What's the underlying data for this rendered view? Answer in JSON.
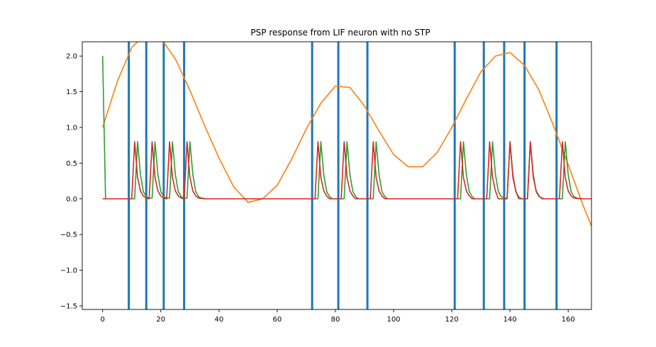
{
  "chart_data": {
    "type": "line",
    "title": "PSP response from LIF neuron with no STP",
    "xlabel": "",
    "ylabel": "",
    "xlim": [
      -7,
      168
    ],
    "ylim": [
      -1.55,
      2.2
    ],
    "xticks": [
      0,
      20,
      40,
      60,
      80,
      100,
      120,
      140,
      160
    ],
    "yticks": [
      -1.5,
      -1.0,
      -0.5,
      0.0,
      0.5,
      1.0,
      1.5,
      2.0
    ],
    "xtick_labels": [
      "0",
      "20",
      "40",
      "60",
      "80",
      "100",
      "120",
      "140",
      "160"
    ],
    "ytick_labels": [
      "−1.5",
      "−1.0",
      "−0.5",
      "0.0",
      "0.5",
      "1.0",
      "1.5",
      "2.0"
    ],
    "grid": false,
    "spike_times": [
      9,
      15,
      21,
      28,
      72,
      81,
      91,
      121,
      131,
      138,
      145,
      156
    ],
    "series": [
      {
        "color": "#ff7f0e",
        "x": [
          0,
          5,
          10,
          15,
          20,
          25,
          30,
          35,
          40,
          45,
          50,
          55,
          60,
          65,
          70,
          75,
          80,
          85,
          90,
          95,
          100,
          105,
          110,
          115,
          120,
          125,
          130,
          135,
          140,
          145,
          150,
          155,
          160,
          165,
          168
        ],
        "y": [
          1.0,
          1.64,
          2.12,
          2.32,
          2.25,
          1.96,
          1.52,
          1.03,
          0.57,
          0.17,
          -0.05,
          0.0,
          0.19,
          0.56,
          0.98,
          1.34,
          1.58,
          1.56,
          1.3,
          0.95,
          0.62,
          0.45,
          0.45,
          0.65,
          1.0,
          1.4,
          1.78,
          2.0,
          2.05,
          1.87,
          1.52,
          1.02,
          0.48,
          -0.08,
          -0.38
        ]
      },
      {
        "color": "#2ca02c",
        "x": [
          0,
          1,
          2,
          10,
          11,
          12,
          13,
          14,
          15,
          16,
          17,
          18,
          19,
          20,
          21,
          22,
          23,
          24,
          25,
          26,
          27,
          28,
          29,
          30,
          31,
          32,
          33,
          34,
          35,
          36,
          37,
          73,
          74,
          75,
          76,
          77,
          78,
          79,
          82,
          83,
          84,
          85,
          86,
          87,
          88,
          92,
          93,
          94,
          95,
          96,
          97,
          98,
          122,
          123,
          124,
          125,
          126,
          127,
          128,
          132,
          133,
          134,
          135,
          136,
          137,
          139,
          140,
          141,
          142,
          143,
          144,
          146,
          147,
          148,
          149,
          150,
          151,
          152,
          157,
          158,
          159,
          160,
          161,
          162,
          163,
          164,
          165,
          168
        ],
        "y": [
          2.0,
          0.0,
          0.0,
          0.0,
          0.0,
          0.8,
          0.34,
          0.1,
          0.03,
          0.01,
          0.01,
          0.8,
          0.34,
          0.1,
          0.03,
          0.01,
          0.01,
          0.8,
          0.34,
          0.1,
          0.03,
          0.01,
          0.01,
          0.8,
          0.34,
          0.1,
          0.03,
          0.01,
          0.005,
          0.0,
          0.0,
          0.0,
          0.0,
          0.8,
          0.34,
          0.1,
          0.03,
          0.0,
          0.0,
          0.0,
          0.8,
          0.34,
          0.1,
          0.03,
          0.0,
          0.0,
          0.0,
          0.8,
          0.34,
          0.1,
          0.03,
          0.0,
          0.0,
          0.0,
          0.8,
          0.34,
          0.1,
          0.03,
          0.0,
          0.0,
          0.0,
          0.8,
          0.34,
          0.1,
          0.03,
          0.0,
          0.8,
          0.34,
          0.1,
          0.03,
          0.0,
          0.0,
          0.8,
          0.34,
          0.1,
          0.03,
          0.01,
          0.0,
          0.0,
          0.0,
          0.8,
          0.34,
          0.1,
          0.03,
          0.01,
          0.005,
          0.0,
          0.0
        ]
      },
      {
        "color": "#d62728",
        "x": [
          0,
          10,
          11,
          12,
          13,
          14,
          15,
          16,
          17,
          18,
          19,
          20,
          21,
          22,
          23,
          24,
          25,
          26,
          27,
          28,
          29,
          30,
          31,
          32,
          33,
          34,
          35,
          36,
          72,
          73,
          74,
          75,
          76,
          77,
          78,
          81,
          82,
          83,
          84,
          85,
          86,
          87,
          91,
          92,
          93,
          94,
          95,
          96,
          97,
          121,
          122,
          123,
          124,
          125,
          126,
          127,
          131,
          132,
          133,
          134,
          135,
          136,
          138,
          139,
          140,
          141,
          142,
          143,
          145,
          146,
          147,
          148,
          149,
          150,
          151,
          156,
          157,
          158,
          159,
          160,
          161,
          162,
          163,
          164,
          168
        ],
        "y": [
          0.0,
          0.0,
          0.8,
          0.3,
          0.11,
          0.04,
          0.01,
          0.0,
          0.8,
          0.3,
          0.11,
          0.04,
          0.01,
          0.0,
          0.8,
          0.3,
          0.11,
          0.04,
          0.01,
          0.0,
          0.8,
          0.3,
          0.11,
          0.04,
          0.01,
          0.005,
          0.0,
          0.0,
          0.0,
          0.0,
          0.8,
          0.3,
          0.11,
          0.04,
          0.0,
          0.0,
          0.0,
          0.8,
          0.3,
          0.11,
          0.04,
          0.0,
          0.0,
          0.0,
          0.8,
          0.3,
          0.11,
          0.04,
          0.0,
          0.0,
          0.0,
          0.8,
          0.3,
          0.11,
          0.04,
          0.0,
          0.0,
          0.0,
          0.8,
          0.3,
          0.11,
          0.0,
          0.0,
          0.0,
          0.8,
          0.3,
          0.11,
          0.0,
          0.0,
          0.0,
          0.8,
          0.3,
          0.11,
          0.04,
          0.0,
          0.0,
          0.0,
          0.8,
          0.3,
          0.11,
          0.04,
          0.01,
          0.005,
          0.0,
          0.0
        ]
      }
    ],
    "spike_color": "#1f77b4"
  }
}
